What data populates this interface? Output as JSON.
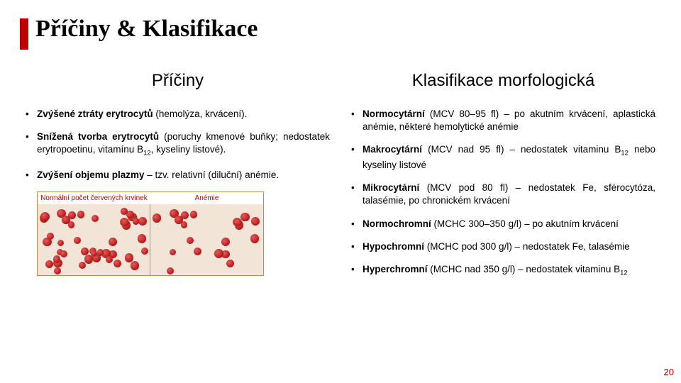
{
  "title": {
    "text": "Příčiny & Klasifikace",
    "fontsize": 34
  },
  "accent_color": "#c00000",
  "body_fontsize": 13.5,
  "heading_fontsize": 24,
  "left": {
    "heading": "Příčiny",
    "bullets": [
      "<b>Zvýšené ztráty erytrocytů</b> (hemolýza, krvácení).",
      "<b>Snížená tvorba erytrocytů</b> (poruchy kmenové buňky; nedostatek erytropoetinu, vitamínu B<span class='sub'>12</span>, kyseliny listové).",
      "<b>Zvýšení objemu plazmy</b> – tzv. relativní (diluční) anémie."
    ],
    "figure": {
      "panel1_label": "Normální počet červených krvinek",
      "panel2_label": "Anémie",
      "panel_label_fontsize": 10,
      "cells_normal": 42,
      "cells_anemia": 20,
      "cell_size_min": 9,
      "cell_size_max": 13
    }
  },
  "right": {
    "heading": "Klasifikace morfologická",
    "bullets": [
      "<b>Normocytární</b> (MCV 80–95 fl) – po akutním krvácení, aplastická anémie, některé hemolytické anémie",
      "<b>Makrocytární</b> (MCV nad 95 fl) – nedostatek vitaminu B<span class='sub'>12</span> nebo kyseliny listové",
      "<b>Mikrocytární</b> (MCV pod 80 fl) – nedostatek Fe, sférocytóza, talasémie, po chronickém krvácení",
      "<b>Normochromní</b> (MCHC 300–350 g/l) – po akutním krvácení",
      "<b>Hypochromní</b> (MCHC pod 300 g/l) – nedostatek Fe, talasémie",
      "<b>Hyperchromní</b> (MCHC nad 350 g/l) – nedostatek vitaminu B<span class='sub'>12</span>"
    ]
  },
  "pagenum": "20",
  "pagenum_fontsize": 13
}
